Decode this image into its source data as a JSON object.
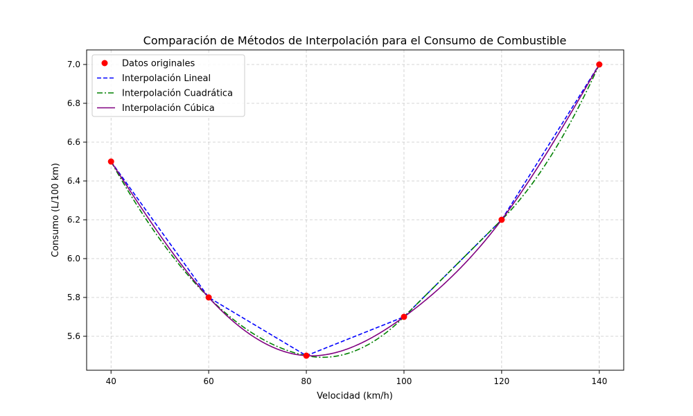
{
  "chart_data": {
    "type": "line",
    "title": "Comparación de Métodos de Interpolación para el Consumo de Combustible",
    "xlabel": "Velocidad (km/h)",
    "ylabel": "Consumo (L/100 km)",
    "xlim": [
      35,
      145
    ],
    "ylim": [
      5.425,
      7.075
    ],
    "x_ticks": [
      40,
      60,
      80,
      100,
      120,
      140
    ],
    "y_ticks": [
      5.6,
      5.8,
      6.0,
      6.2,
      6.4,
      6.6,
      6.8,
      7.0
    ],
    "grid": true,
    "legend_position": "top-left",
    "points": {
      "name": "Datos originales",
      "color": "#ff0000",
      "x": [
        40,
        60,
        80,
        100,
        120,
        140
      ],
      "y": [
        6.5,
        5.8,
        5.5,
        5.7,
        6.2,
        7.0
      ]
    },
    "series": [
      {
        "name": "Interpolación Lineal",
        "method": "linear",
        "color": "#0000ff",
        "dash": "dashed"
      },
      {
        "name": "Interpolación Cuadrática",
        "method": "quadratic",
        "color": "#008000",
        "dash": "dashdot"
      },
      {
        "name": "Interpolación Cúbica",
        "method": "cubic",
        "color": "#800080",
        "dash": "solid"
      }
    ]
  }
}
